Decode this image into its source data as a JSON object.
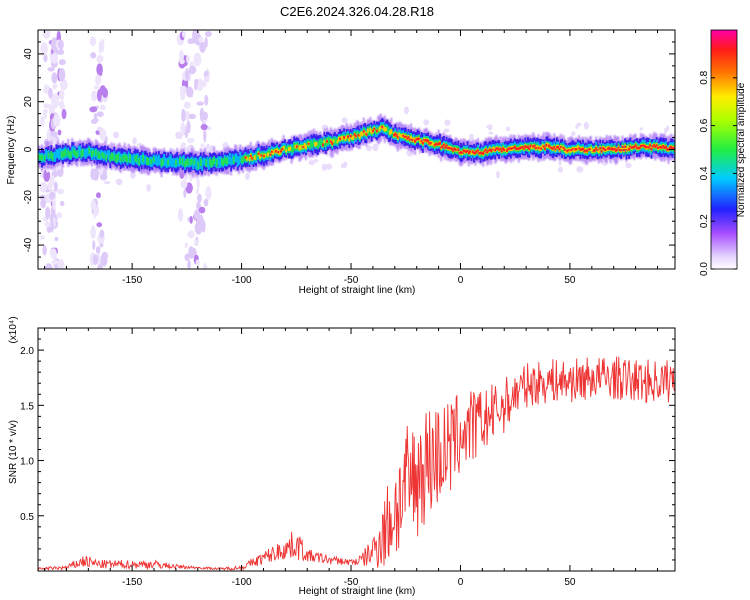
{
  "figure": {
    "title": "C2E6.2024.326.04.28.R18"
  },
  "chart_data": [
    {
      "type": "heatmap",
      "title": "C2E6.2024.326.04.28.R18",
      "xlabel": "Height of straight line (km)",
      "ylabel": "Frequency (Hz)",
      "xlim": [
        -193,
        98
      ],
      "ylim": [
        -50,
        50
      ],
      "xticks": [
        -150,
        -100,
        -50,
        0,
        50
      ],
      "yticks": [
        -40,
        -20,
        0,
        20,
        40
      ],
      "colorbar": {
        "label": "Normalized spectral amplitude",
        "range": [
          0,
          1
        ],
        "ticks": [
          0.0,
          0.2,
          0.4,
          0.6,
          0.8
        ],
        "tick_labels": [
          "0.0",
          "0.2",
          "0.4",
          "0.6",
          "0.8"
        ],
        "colormap": "rainbow (white, violet, blue, cyan, green, yellow, orange, red, magenta)"
      },
      "ridge_center_hz": [
        {
          "x": -193,
          "y": -3
        },
        {
          "x": -180,
          "y": -2
        },
        {
          "x": -170,
          "y": -1
        },
        {
          "x": -160,
          "y": -3
        },
        {
          "x": -150,
          "y": -4
        },
        {
          "x": -140,
          "y": -5
        },
        {
          "x": -130,
          "y": -5
        },
        {
          "x": -120,
          "y": -6
        },
        {
          "x": -110,
          "y": -5
        },
        {
          "x": -100,
          "y": -4
        },
        {
          "x": -90,
          "y": -2
        },
        {
          "x": -80,
          "y": 0
        },
        {
          "x": -70,
          "y": 2
        },
        {
          "x": -60,
          "y": 3
        },
        {
          "x": -50,
          "y": 5
        },
        {
          "x": -40,
          "y": 8
        },
        {
          "x": -35,
          "y": 9
        },
        {
          "x": -30,
          "y": 6
        },
        {
          "x": -20,
          "y": 4
        },
        {
          "x": -10,
          "y": 2
        },
        {
          "x": 0,
          "y": -1
        },
        {
          "x": 10,
          "y": -1
        },
        {
          "x": 20,
          "y": 0
        },
        {
          "x": 30,
          "y": 1
        },
        {
          "x": 40,
          "y": 1
        },
        {
          "x": 50,
          "y": 0
        },
        {
          "x": 60,
          "y": 0
        },
        {
          "x": 70,
          "y": 0
        },
        {
          "x": 80,
          "y": 1
        },
        {
          "x": 90,
          "y": 1
        },
        {
          "x": 98,
          "y": 0
        }
      ],
      "noise_columns_km": [
        -188,
        -184,
        -165,
        -125,
        -118
      ]
    },
    {
      "type": "line",
      "xlabel": "Height of straight line (km)",
      "ylabel": "SNR (10 * v/v)",
      "y_multiplier": "(x10⁴)",
      "xlim": [
        -193,
        98
      ],
      "ylim": [
        0,
        2.2
      ],
      "xticks": [
        -150,
        -100,
        -50,
        0,
        50
      ],
      "yticks": [
        0.5,
        1.0,
        1.5,
        2.0
      ],
      "ytick_labels": [
        "0.5",
        "1.0",
        "1.5",
        "2.0"
      ],
      "series": [
        {
          "color": "#ee3333",
          "x": [
            -193,
            -180,
            -172,
            -165,
            -150,
            -140,
            -130,
            -120,
            -110,
            -100,
            -90,
            -80,
            -75,
            -70,
            -60,
            -50,
            -45,
            -40,
            -35,
            -30,
            -25,
            -20,
            -15,
            -10,
            -5,
            0,
            10,
            20,
            25,
            30,
            40,
            50,
            60,
            70,
            80,
            90,
            98
          ],
          "y": [
            0.02,
            0.03,
            0.09,
            0.06,
            0.06,
            0.06,
            0.04,
            0.03,
            0.02,
            0.03,
            0.12,
            0.2,
            0.25,
            0.14,
            0.1,
            0.08,
            0.1,
            0.18,
            0.35,
            0.55,
            0.75,
            0.85,
            1.0,
            1.05,
            1.1,
            1.25,
            1.35,
            1.5,
            1.6,
            1.68,
            1.72,
            1.72,
            1.75,
            1.75,
            1.72,
            1.72,
            1.72
          ],
          "spread": [
            0.01,
            0.02,
            0.06,
            0.04,
            0.04,
            0.04,
            0.02,
            0.01,
            0.01,
            0.02,
            0.06,
            0.1,
            0.15,
            0.06,
            0.04,
            0.03,
            0.06,
            0.15,
            0.35,
            0.5,
            0.55,
            0.55,
            0.55,
            0.5,
            0.45,
            0.4,
            0.3,
            0.25,
            0.22,
            0.2,
            0.2,
            0.2,
            0.2,
            0.2,
            0.2,
            0.2,
            0.2
          ]
        }
      ]
    }
  ]
}
